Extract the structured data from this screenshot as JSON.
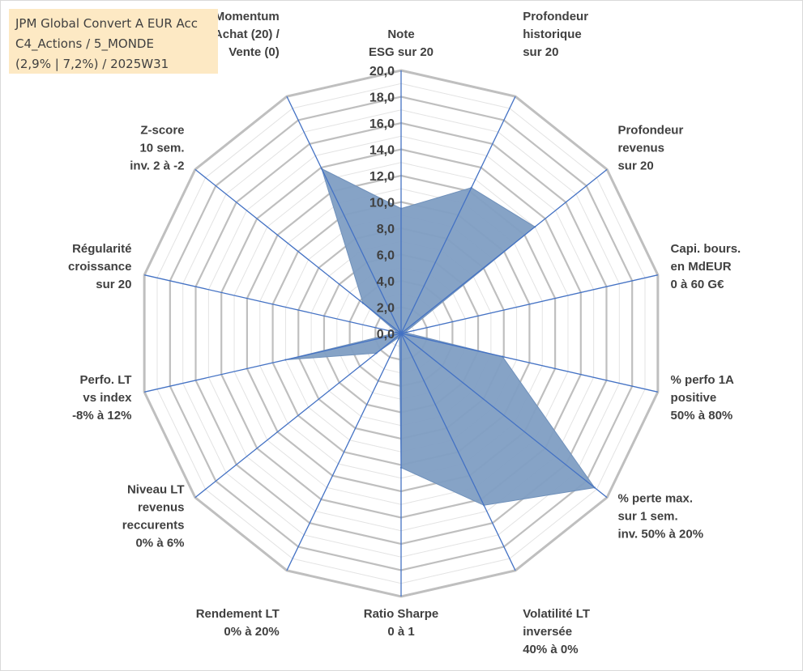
{
  "title_box": {
    "line1": "JPM Global Convert A EUR Acc",
    "line2": "C4_Actions / 5_MONDE",
    "line3": "(2,9% | 7,2%) / 2025W31"
  },
  "chart_data": {
    "type": "radar",
    "title": "JPM Global Convert A EUR Acc",
    "subtitle": "C4_Actions / 5_MONDE (2,9% | 7,2%) / 2025W31",
    "rlim": [
      0,
      20
    ],
    "ticks": [
      "0,0",
      "2,0",
      "4,0",
      "6,0",
      "8,0",
      "10,0",
      "12,0",
      "14,0",
      "16,0",
      "18,0",
      "20,0"
    ],
    "grid": true,
    "categories": [
      [
        "Note",
        "ESG sur 20"
      ],
      [
        "Profondeur",
        "historique",
        "sur 20"
      ],
      [
        "Profondeur",
        "revenus",
        "sur 20"
      ],
      [
        "Capi. bours.",
        "en MdEUR",
        "0 à 60 G€"
      ],
      [
        "% perfo 1A",
        "positive",
        "50% à 80%"
      ],
      [
        "% perte max.",
        "sur 1 sem.",
        "inv. 50% à 20%"
      ],
      [
        "Volatilité LT",
        "inversée",
        "40% à 0%"
      ],
      [
        "Ratio Sharpe",
        "0 à 1"
      ],
      [
        "Rendement LT",
        "0% à 20%"
      ],
      [
        "Niveau LT",
        "revenus",
        "reccurents",
        "0% à 6%"
      ],
      [
        "Perfo. LT",
        "vs index",
        "-8% à 12%"
      ],
      [
        "Régularité",
        "croissance",
        "sur 20"
      ],
      [
        "Z-score",
        "10 sem.",
        "inv. 2 à -2"
      ],
      [
        "Momentum",
        "Achat (20) /",
        "Vente (0)"
      ]
    ],
    "series": [
      {
        "values": [
          9.5,
          12.3,
          13.0,
          0.3,
          7.9,
          18.8,
          14.5,
          10.2,
          0.3,
          2.4,
          9.0,
          0.3,
          3.7,
          13.9
        ]
      }
    ],
    "colors": {
      "fill": "#7f9ec3",
      "stroke": "#4472c4",
      "grid": "#bfbfbf",
      "spoke": "#4472c4"
    }
  }
}
